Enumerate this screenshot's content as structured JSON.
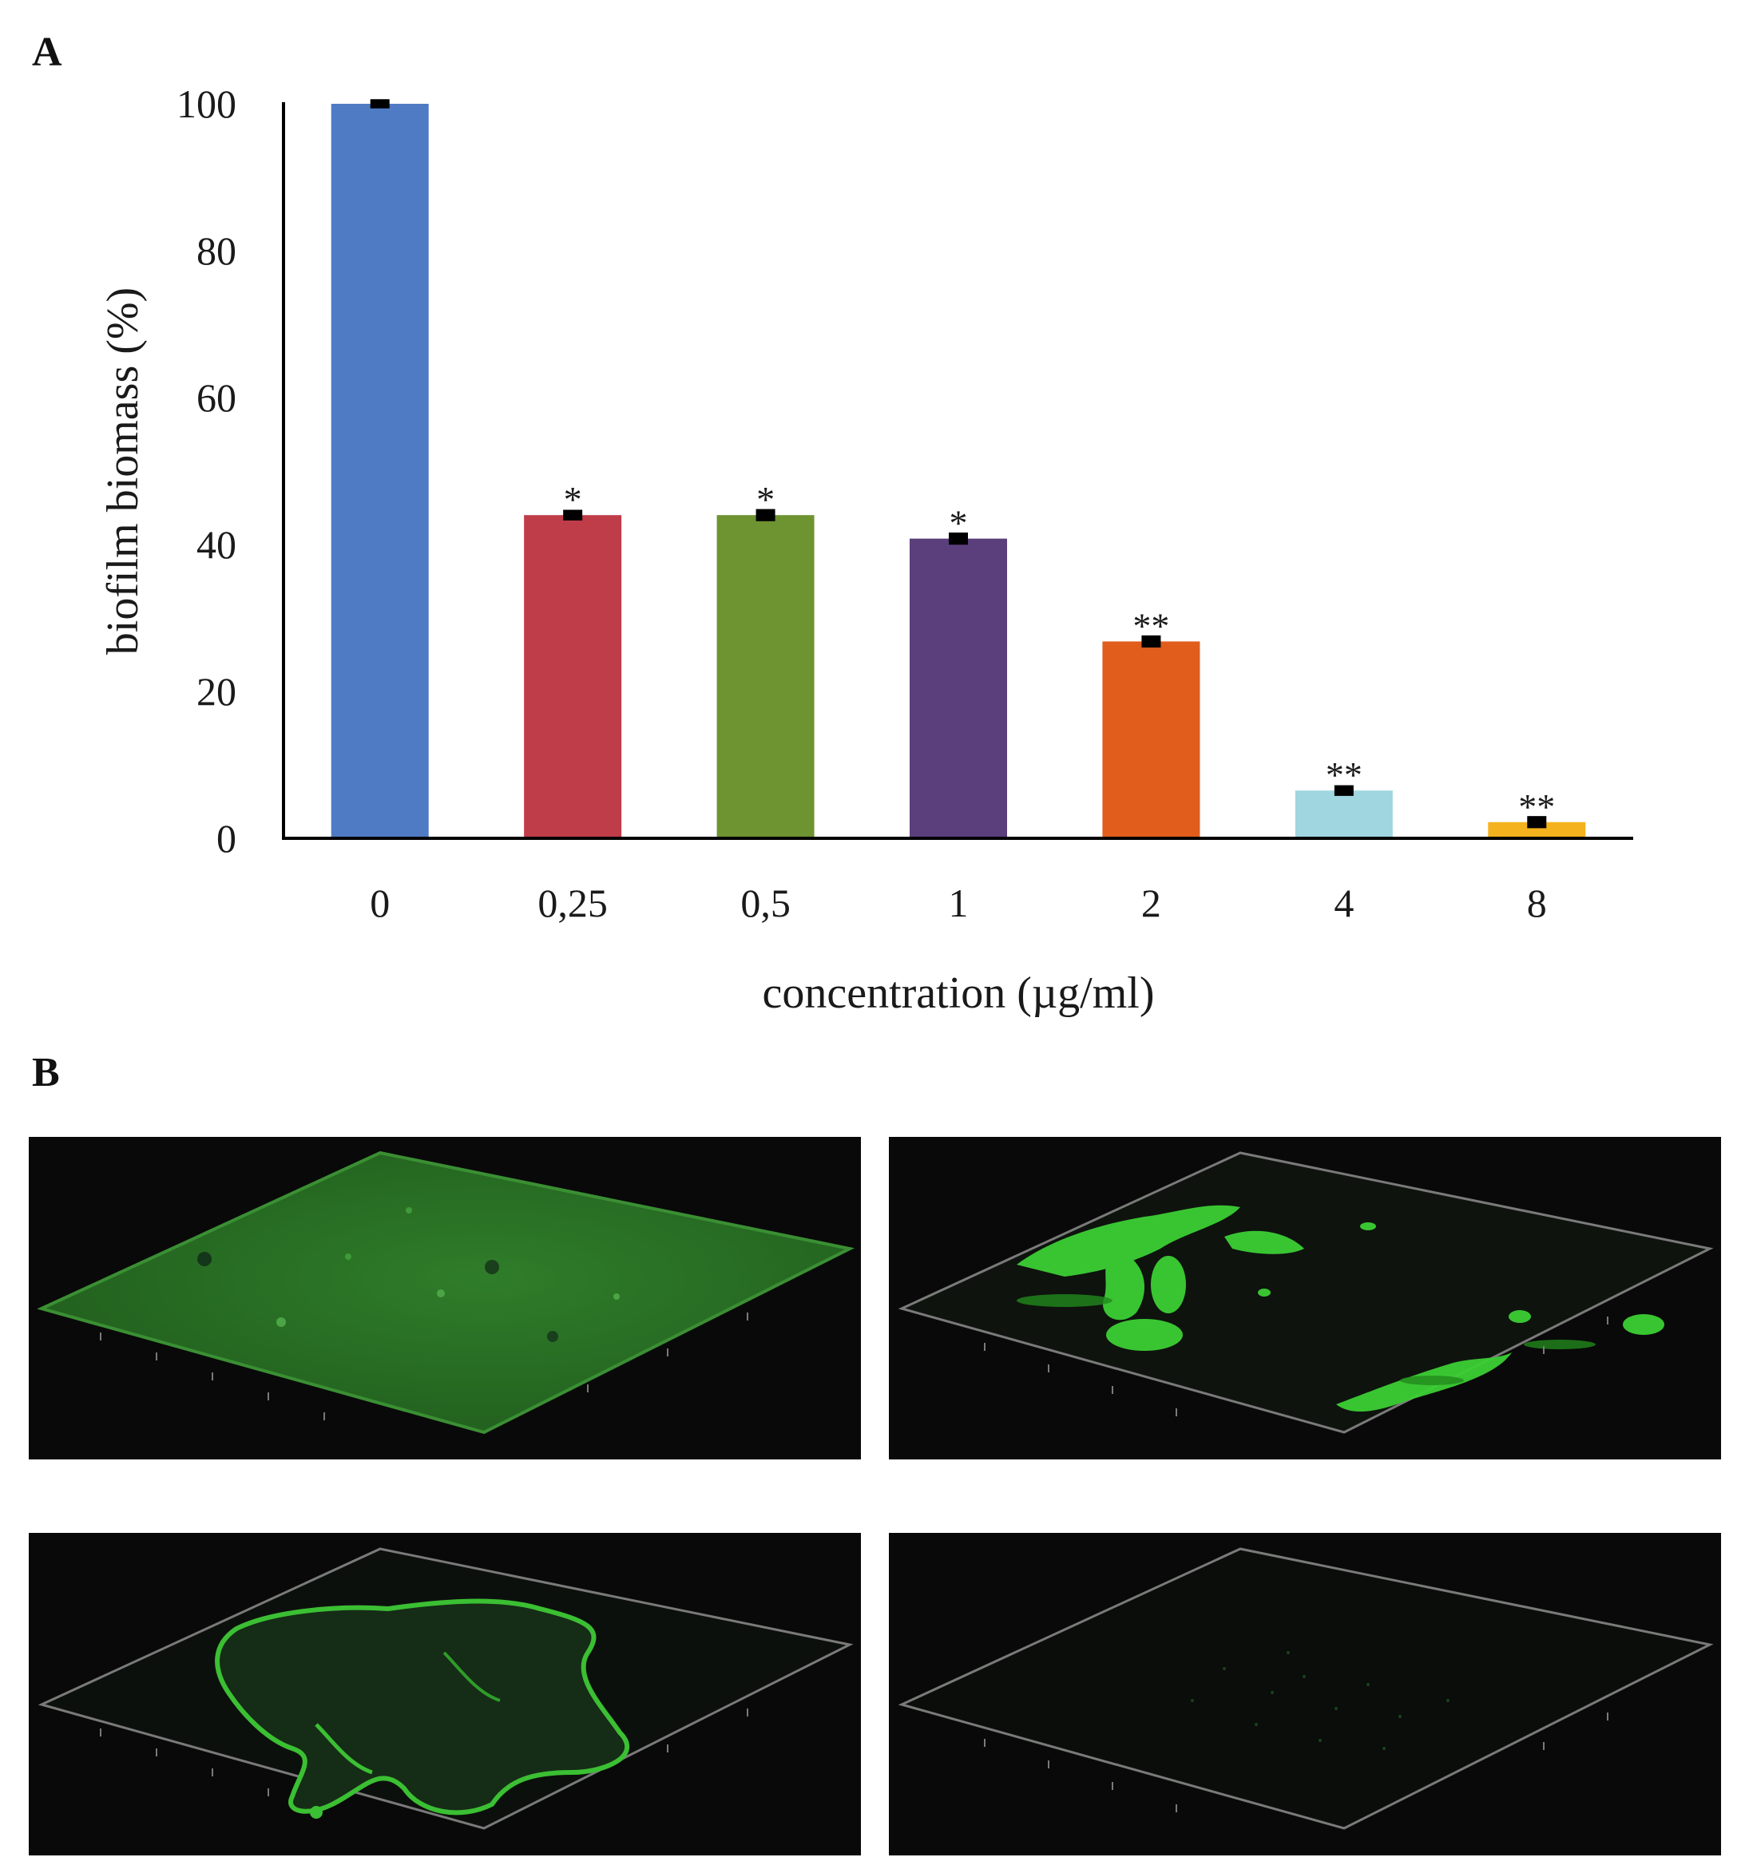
{
  "panels": {
    "a_label": "A",
    "b_label": "B"
  },
  "chart_data": {
    "type": "bar",
    "xlabel": "concentration (µg/ml)",
    "ylabel": "biofilm biomass (%)",
    "categories": [
      "0",
      "0,25",
      "0,5",
      "1",
      "2",
      "4",
      "8"
    ],
    "values": [
      100,
      44,
      44,
      40.8,
      26.8,
      6.5,
      2.2
    ],
    "errors": [
      0.3,
      0.4,
      0.5,
      0.5,
      0.5,
      0.4,
      0.5
    ],
    "significance": [
      "",
      "*",
      "*",
      "*",
      "**",
      "**",
      "**"
    ],
    "colors": [
      "#4f7bc4",
      "#bf3c49",
      "#6e9331",
      "#5b3f7c",
      "#e05d1c",
      "#9fd6df",
      "#f4b21c"
    ],
    "ylim": [
      0,
      100
    ],
    "yticks": [
      0,
      20,
      40,
      60,
      80,
      100
    ],
    "grid": false,
    "legend": "none"
  },
  "images": [
    {
      "name": "micro-image-top-left",
      "content": "dense uniform green biofilm layer"
    },
    {
      "name": "micro-image-top-right",
      "content": "patchy green biofilm clusters"
    },
    {
      "name": "micro-image-bottom-left",
      "content": "sparse green biofilm outline"
    },
    {
      "name": "micro-image-bottom-right",
      "content": "near-empty field, trace biofilm"
    }
  ]
}
